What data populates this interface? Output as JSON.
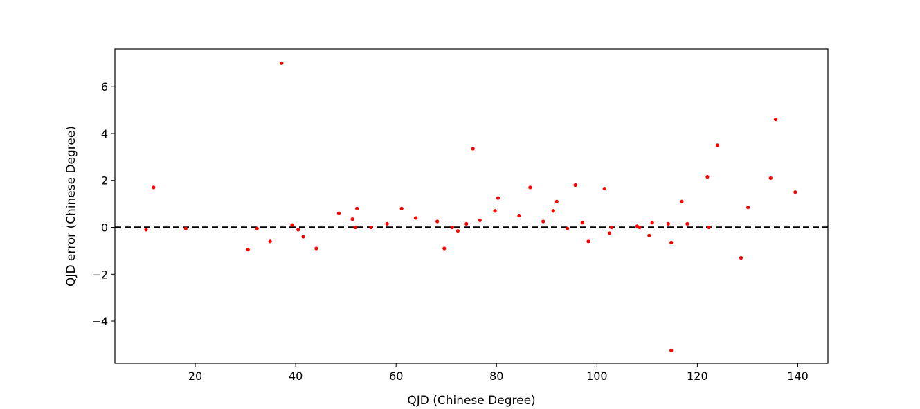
{
  "chart_data": {
    "type": "scatter",
    "title": "",
    "xlabel": "QJD (Chinese Degree)",
    "ylabel": "QJD error (Chinese Degree)",
    "xlim": [
      4,
      146
    ],
    "ylim": [
      -5.8,
      7.6
    ],
    "xticks": [
      20,
      40,
      60,
      80,
      100,
      120,
      140
    ],
    "yticks": [
      -4,
      -2,
      0,
      2,
      4,
      6
    ],
    "ytick_labels": [
      "−4",
      "−2",
      "0",
      "2",
      "4",
      "6"
    ],
    "grid": false,
    "legend": "none",
    "point_color": "#ff0000",
    "reference_line": {
      "y": 0,
      "style": "dashed",
      "color": "#000000"
    },
    "points": [
      {
        "x": 10.2,
        "y": -0.1
      },
      {
        "x": 11.7,
        "y": 1.7
      },
      {
        "x": 18.1,
        "y": -0.05
      },
      {
        "x": 30.5,
        "y": -0.95
      },
      {
        "x": 32.3,
        "y": -0.05
      },
      {
        "x": 34.9,
        "y": -0.6
      },
      {
        "x": 37.2,
        "y": 7.0
      },
      {
        "x": 39.3,
        "y": 0.1
      },
      {
        "x": 40.5,
        "y": -0.1
      },
      {
        "x": 41.5,
        "y": -0.4
      },
      {
        "x": 44.1,
        "y": -0.9
      },
      {
        "x": 48.6,
        "y": 0.6
      },
      {
        "x": 51.3,
        "y": 0.35
      },
      {
        "x": 51.9,
        "y": 0.0
      },
      {
        "x": 52.2,
        "y": 0.8
      },
      {
        "x": 55.0,
        "y": 0.0
      },
      {
        "x": 58.2,
        "y": 0.15
      },
      {
        "x": 61.1,
        "y": 0.8
      },
      {
        "x": 63.9,
        "y": 0.4
      },
      {
        "x": 68.2,
        "y": 0.25
      },
      {
        "x": 69.6,
        "y": -0.9
      },
      {
        "x": 71.2,
        "y": 0.0
      },
      {
        "x": 72.3,
        "y": -0.15
      },
      {
        "x": 74.0,
        "y": 0.15
      },
      {
        "x": 75.3,
        "y": 3.35
      },
      {
        "x": 76.7,
        "y": 0.3
      },
      {
        "x": 79.7,
        "y": 0.7
      },
      {
        "x": 80.3,
        "y": 1.25
      },
      {
        "x": 84.5,
        "y": 0.5
      },
      {
        "x": 86.7,
        "y": 1.7
      },
      {
        "x": 89.3,
        "y": 0.25
      },
      {
        "x": 91.3,
        "y": 0.7
      },
      {
        "x": 92.0,
        "y": 1.1
      },
      {
        "x": 94.1,
        "y": -0.05
      },
      {
        "x": 95.7,
        "y": 1.8
      },
      {
        "x": 97.1,
        "y": 0.2
      },
      {
        "x": 98.3,
        "y": -0.6
      },
      {
        "x": 101.5,
        "y": 1.65
      },
      {
        "x": 102.5,
        "y": -0.25
      },
      {
        "x": 102.9,
        "y": 0.0
      },
      {
        "x": 108.0,
        "y": 0.05
      },
      {
        "x": 108.5,
        "y": 0.0
      },
      {
        "x": 110.4,
        "y": -0.35
      },
      {
        "x": 111.0,
        "y": 0.2
      },
      {
        "x": 114.2,
        "y": 0.15
      },
      {
        "x": 114.8,
        "y": -0.65
      },
      {
        "x": 114.8,
        "y": -5.25
      },
      {
        "x": 116.9,
        "y": 1.1
      },
      {
        "x": 118.0,
        "y": 0.15
      },
      {
        "x": 122.0,
        "y": 2.15
      },
      {
        "x": 122.3,
        "y": 0.0
      },
      {
        "x": 124.0,
        "y": 3.5
      },
      {
        "x": 128.7,
        "y": -1.3
      },
      {
        "x": 130.1,
        "y": 0.85
      },
      {
        "x": 134.6,
        "y": 2.1
      },
      {
        "x": 135.6,
        "y": 4.6
      },
      {
        "x": 139.5,
        "y": 1.5
      }
    ]
  }
}
